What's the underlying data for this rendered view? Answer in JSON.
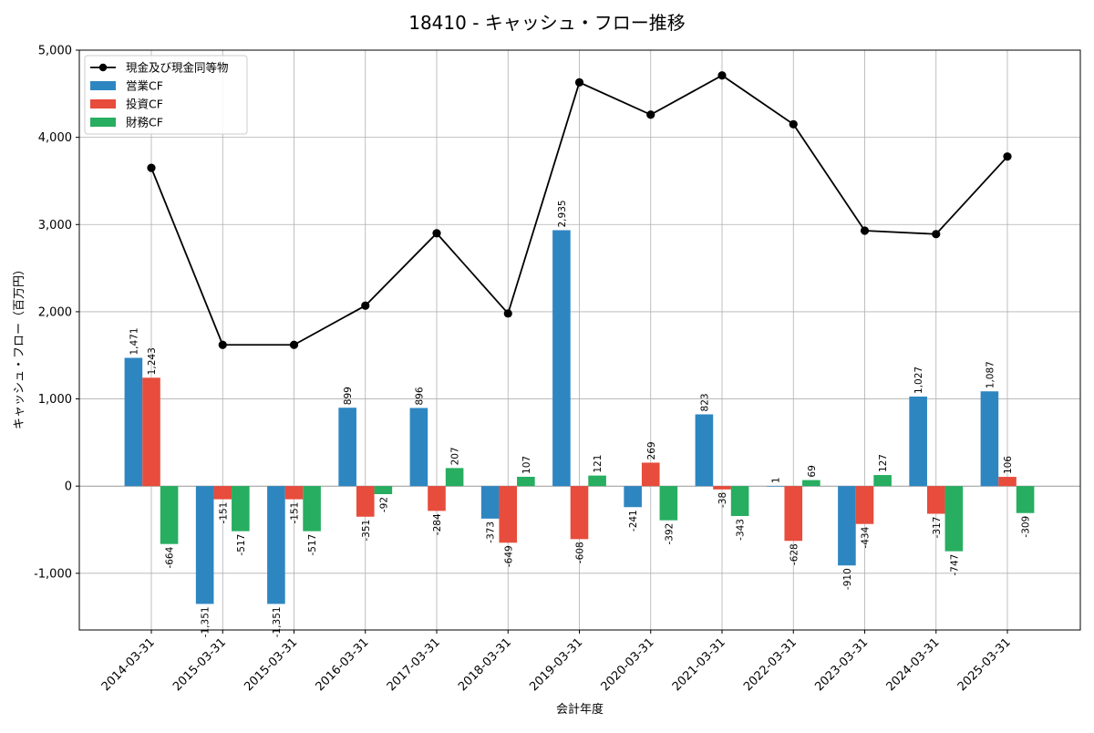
{
  "chart_data": {
    "type": "bar",
    "title": "18410 - キャッシュ・フロー推移",
    "xlabel": "会計年度",
    "ylabel": "キャッシュ・フロー（百万円）",
    "ylim": [
      -1650,
      5000
    ],
    "yticks": [
      -1000,
      0,
      1000,
      2000,
      3000,
      4000,
      5000
    ],
    "ytick_labels": [
      "-1,000",
      "0",
      "1,000",
      "2,000",
      "3,000",
      "4,000",
      "5,000"
    ],
    "grid": true,
    "legend_position": "top-left",
    "categories": [
      "2014-03-31",
      "2015-03-31",
      "2015-03-31",
      "2016-03-31",
      "2017-03-31",
      "2018-03-31",
      "2019-03-31",
      "2020-03-31",
      "2021-03-31",
      "2022-03-31",
      "2023-03-31",
      "2024-03-31",
      "2025-03-31"
    ],
    "line_series": {
      "name": "現金及び現金同等物",
      "color": "#000000",
      "values": [
        3650,
        1620,
        1620,
        2070,
        2900,
        1980,
        4630,
        4260,
        4710,
        4150,
        2930,
        2890,
        3780
      ]
    },
    "series": [
      {
        "name": "営業CF",
        "color": "#2e86c1",
        "values": [
          1471,
          -1351,
          -1351,
          899,
          896,
          -373,
          2935,
          -241,
          823,
          1,
          -910,
          1027,
          1087
        ],
        "labels": [
          "1,471",
          "-1,351",
          "-1,351",
          "899",
          "896",
          "-373",
          "2,935",
          "-241",
          "823",
          "1",
          "-910",
          "1,027",
          "1,087"
        ]
      },
      {
        "name": "投資CF",
        "color": "#e74c3c",
        "values": [
          1243,
          -151,
          -151,
          -351,
          -284,
          -649,
          -608,
          269,
          -38,
          -628,
          -434,
          -317,
          106
        ],
        "labels": [
          "1,243",
          "-151",
          "-151",
          "-351",
          "-284",
          "-649",
          "-608",
          "269",
          "-38",
          "-628",
          "-434",
          "-317",
          "106"
        ]
      },
      {
        "name": "財務CF",
        "color": "#27ae60",
        "values": [
          -664,
          -517,
          -517,
          -92,
          207,
          107,
          121,
          -392,
          -343,
          69,
          127,
          -747,
          -309
        ],
        "labels": [
          "-664",
          "-517",
          "-517",
          "-92",
          "207",
          "107",
          "121",
          "-392",
          "-343",
          "69",
          "127",
          "-747",
          "-309"
        ]
      }
    ]
  }
}
